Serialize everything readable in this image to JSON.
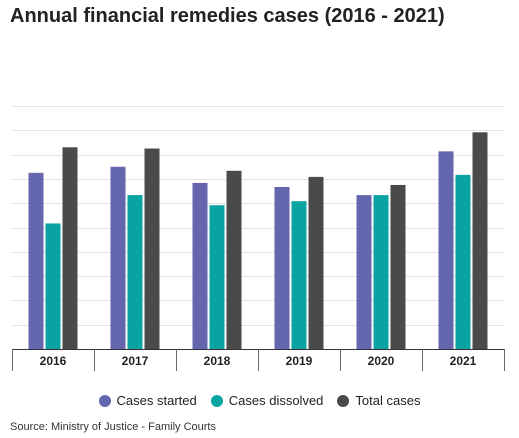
{
  "title": "Annual financial remedies cases (2016 - 2021)",
  "source": "Source: Ministry of Justice - Family Courts",
  "chart_data": {
    "type": "bar",
    "title": "Annual financial remedies cases (2016 - 2021)",
    "categories": [
      "2016",
      "2017",
      "2018",
      "2019",
      "2020",
      "2021"
    ],
    "series": [
      {
        "name": "Cases started",
        "color": "#6466ae",
        "values": [
          43500,
          45000,
          41000,
          40000,
          38000,
          48800
        ]
      },
      {
        "name": "Cases dissolved",
        "color": "#0aa3a3",
        "values": [
          31000,
          38000,
          35500,
          36500,
          38000,
          43000
        ]
      },
      {
        "name": "Total cases",
        "color": "#4a4a4a",
        "values": [
          49800,
          49500,
          44000,
          42500,
          40500,
          53500
        ]
      }
    ],
    "ylim": [
      0,
      60000
    ],
    "grid": true,
    "legend_position": "bottom"
  }
}
